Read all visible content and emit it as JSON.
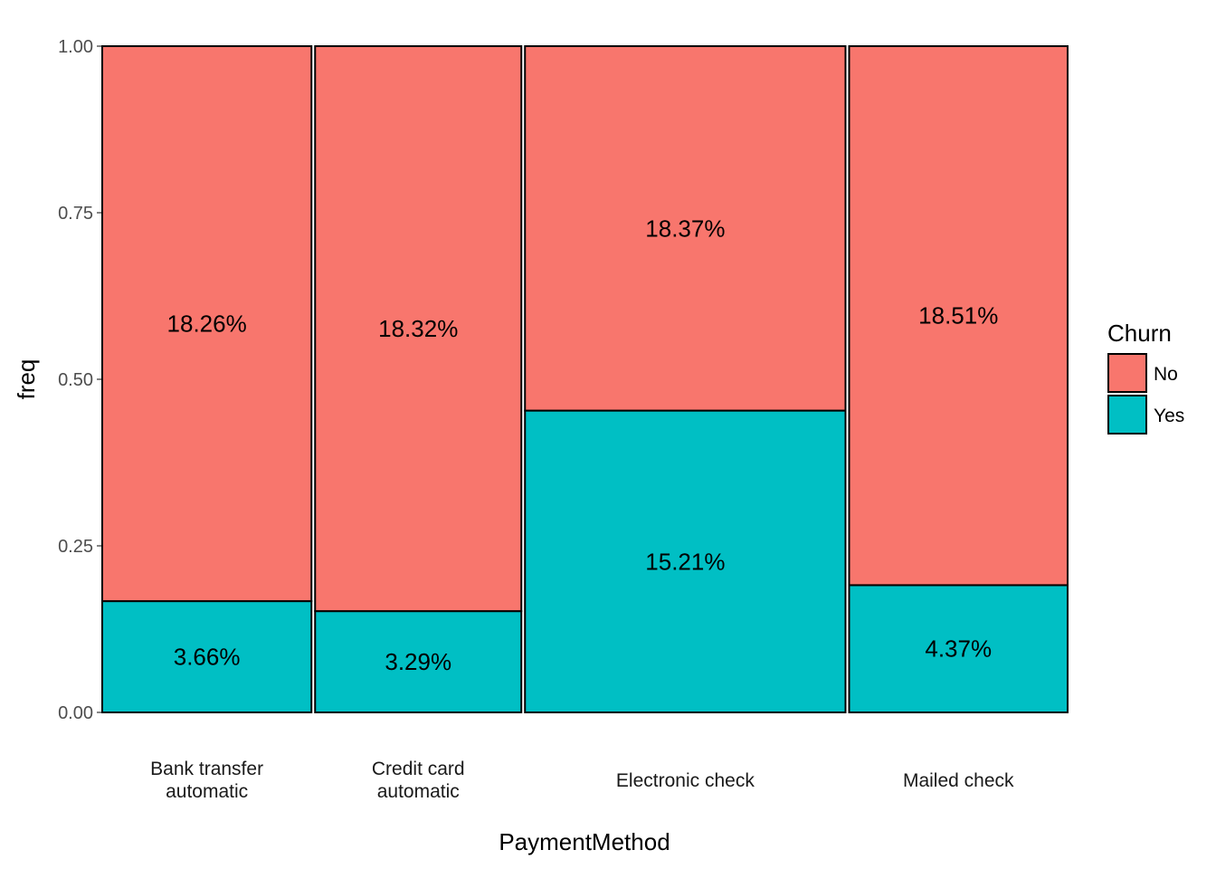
{
  "chart_data": {
    "type": "bar",
    "subtype": "mosaic-stacked-proportion",
    "xlabel": "PaymentMethod",
    "ylabel": "freq",
    "ylim": [
      0,
      1
    ],
    "yticks": [
      "0.00",
      "0.25",
      "0.50",
      "0.75",
      "1.00"
    ],
    "grid": false,
    "legend": {
      "title": "Churn",
      "position": "right",
      "entries": [
        {
          "label": "No",
          "color": "#F8766D"
        },
        {
          "label": "Yes",
          "color": "#00BFC4"
        }
      ]
    },
    "categories": [
      {
        "label": [
          "Bank transfer",
          "automatic"
        ],
        "width_share": 0.2192
      },
      {
        "label": [
          "Credit card",
          "automatic"
        ],
        "width_share": 0.2161
      },
      {
        "label": [
          "Electronic check"
        ],
        "width_share": 0.3358
      },
      {
        "label": [
          "Mailed check"
        ],
        "width_share": 0.2289
      }
    ],
    "series": [
      {
        "name": "Yes",
        "color": "#00BFC4",
        "freq": [
          0.167,
          0.152,
          0.453,
          0.191
        ],
        "labels": [
          "3.66%",
          "3.29%",
          "15.21%",
          "4.37%"
        ]
      },
      {
        "name": "No",
        "color": "#F8766D",
        "freq": [
          0.833,
          0.848,
          0.547,
          0.809
        ],
        "labels": [
          "18.26%",
          "18.32%",
          "18.37%",
          "18.51%"
        ]
      }
    ]
  }
}
